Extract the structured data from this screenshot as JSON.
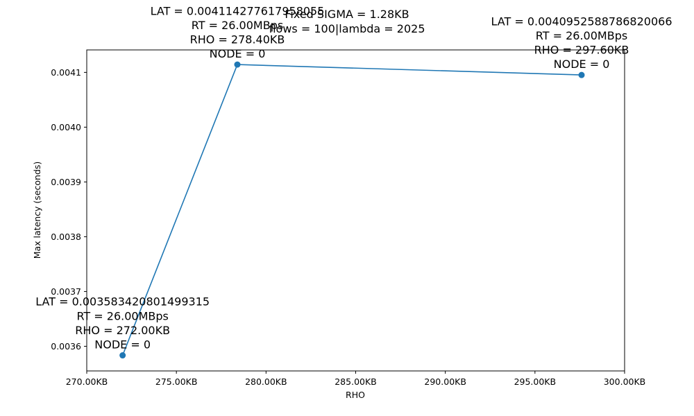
{
  "chart_data": {
    "type": "line",
    "title_lines": [
      "Fixed SIGMA = 1.28KB",
      "flows = 100|lambda = 2025"
    ],
    "xlabel": "RHO",
    "ylabel": "Max latency (seconds)",
    "xlim": [
      270,
      300
    ],
    "ylim": [
      0.003555,
      0.004141
    ],
    "x_ticks": [
      270,
      275,
      280,
      285,
      290,
      295,
      300
    ],
    "x_tick_labels": [
      "270.00KB",
      "275.00KB",
      "280.00KB",
      "285.00KB",
      "290.00KB",
      "295.00KB",
      "300.00KB"
    ],
    "y_ticks": [
      0.0036,
      0.0037,
      0.0038,
      0.0039,
      0.004,
      0.0041
    ],
    "y_tick_labels": [
      "0.0036",
      "0.0037",
      "0.0038",
      "0.0039",
      "0.0040",
      "0.0041"
    ],
    "grid": false,
    "series": [
      {
        "color": "#1f77b4",
        "x": [
          272.0,
          278.4,
          297.6
        ],
        "y": [
          0.003583420801499315,
          0.004114277617958055,
          0.0040952588786820066
        ],
        "annotations": [
          [
            "LAT = 0.003583420801499315",
            "RT = 26.00MBps",
            "RHO = 272.00KB",
            "NODE = 0"
          ],
          [
            "LAT = 0.004114277617958055",
            "RT = 26.00MBps",
            "RHO = 278.40KB",
            "NODE = 0"
          ],
          [
            "LAT = 0.0040952588786820066",
            "RT = 26.00MBps",
            "RHO = 297.60KB",
            "NODE = 0"
          ]
        ]
      }
    ]
  }
}
